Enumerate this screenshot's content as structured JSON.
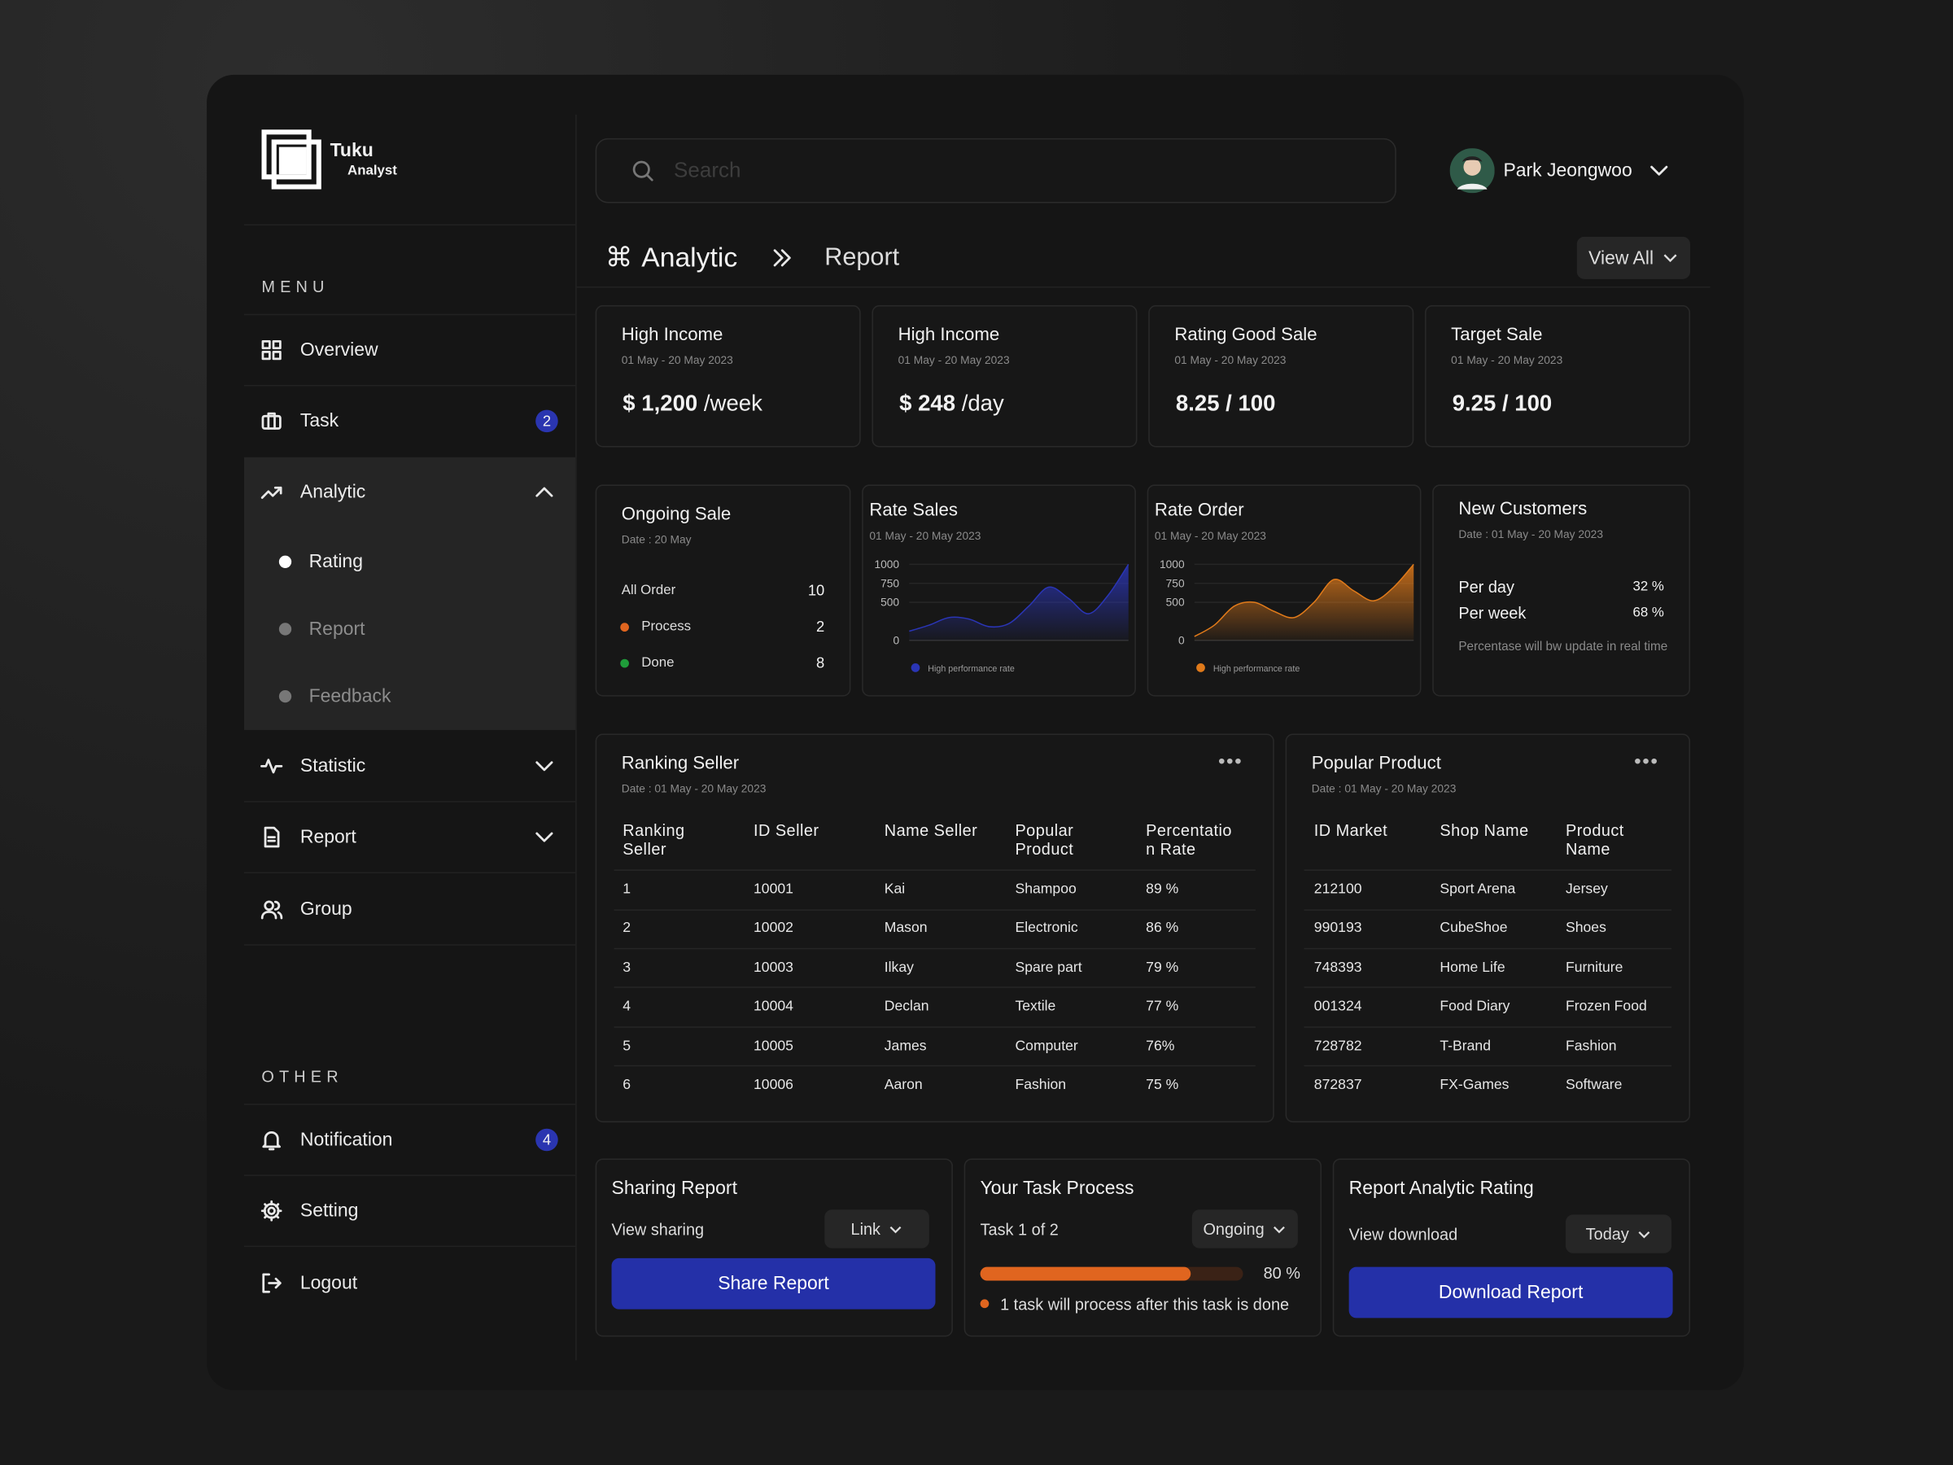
{
  "brand": {
    "name": "Tuku",
    "tagline": "Analyst"
  },
  "sidebar": {
    "menu_label": "MENU",
    "menu": [
      {
        "label": "Overview"
      },
      {
        "label": "Task",
        "badge": 2
      },
      {
        "label": "Analytic",
        "submenu": [
          "Rating",
          "Report",
          "Feedback"
        ]
      },
      {
        "label": "Statistic"
      },
      {
        "label": "Report"
      },
      {
        "label": "Group"
      }
    ],
    "other_label": "OTHER",
    "other": [
      {
        "label": "Notification",
        "badge": 4
      },
      {
        "label": "Setting"
      },
      {
        "label": "Logout"
      }
    ]
  },
  "search": {
    "placeholder": "Search"
  },
  "user": {
    "name": "Park Jeongwoo"
  },
  "breadcrumb": {
    "section": "Analytic",
    "page": "Report",
    "button": "View All"
  },
  "stat_cards": [
    {
      "title": "High Income",
      "date": "01 May - 20 May 2023",
      "value": "$ 1,200",
      "unit": "/week"
    },
    {
      "title": "High Income",
      "date": "01 May - 20 May 2023",
      "value": "$ 248",
      "unit": "/day"
    },
    {
      "title": "Rating Good Sale",
      "date": "01 May - 20 May 2023",
      "value": "8.25 / 100"
    },
    {
      "title": "Target Sale",
      "date": "01 May - 20 May 2023",
      "value": "9.25 / 100"
    }
  ],
  "ongoing_sale": {
    "title": "Ongoing Sale",
    "date": "Date : 20 May",
    "rows": [
      {
        "label": "All Order",
        "value": 10
      },
      {
        "label": "Process",
        "value": 2,
        "color": "#e0651f"
      },
      {
        "label": "Done",
        "value": 8,
        "color": "#1f9d3a"
      }
    ]
  },
  "chart_data": [
    {
      "type": "area",
      "title": "Rate Sales",
      "subtitle": "01 May - 20 May 2023",
      "ylim": [
        0,
        1000
      ],
      "yticks": [
        0,
        500,
        750,
        1000
      ],
      "grid": true,
      "series": [
        {
          "name": "High performance rate",
          "color": "#2a35b5",
          "values": [
            120,
            200,
            300,
            280,
            180,
            220,
            450,
            700,
            550,
            350,
            600,
            1000
          ]
        }
      ]
    },
    {
      "type": "area",
      "title": "Rate Order",
      "subtitle": "01 May - 20 May 2023",
      "ylim": [
        0,
        1000
      ],
      "yticks": [
        0,
        500,
        750,
        1000
      ],
      "grid": true,
      "series": [
        {
          "name": "High performance rate",
          "color": "#e07a1a",
          "values": [
            50,
            200,
            450,
            500,
            380,
            300,
            500,
            800,
            650,
            520,
            700,
            1000
          ]
        }
      ]
    }
  ],
  "new_customers": {
    "title": "New Customers",
    "date": "Date : 01 May - 20 May 2023",
    "rows": [
      {
        "label": "Per day",
        "value": "32 %"
      },
      {
        "label": "Per week",
        "value": "68 %"
      }
    ],
    "note": "Percentase will bw update in real time"
  },
  "ranking_seller": {
    "title": "Ranking Seller",
    "date": "Date : 01 May - 20 May 2023",
    "columns": [
      "Ranking Seller",
      "ID Seller",
      "Name Seller",
      "Popular Product",
      "Percentation Rate"
    ],
    "rows": [
      [
        "1",
        "10001",
        "Kai",
        "Shampoo",
        "89 %"
      ],
      [
        "2",
        "10002",
        "Mason",
        "Electronic",
        "86 %"
      ],
      [
        "3",
        "10003",
        "Ilkay",
        "Spare part",
        "79 %"
      ],
      [
        "4",
        "10004",
        "Declan",
        "Textile",
        "77 %"
      ],
      [
        "5",
        "10005",
        "James",
        "Computer",
        "76%"
      ],
      [
        "6",
        "10006",
        "Aaron",
        "Fashion",
        "75 %"
      ]
    ]
  },
  "popular_product": {
    "title": "Popular Product",
    "date": "Date : 01 May - 20 May 2023",
    "columns": [
      "ID Market",
      "Shop Name",
      "Product Name"
    ],
    "rows": [
      [
        "212100",
        "Sport Arena",
        "Jersey"
      ],
      [
        "990193",
        "CubeShoe",
        "Shoes"
      ],
      [
        "748393",
        "Home Life",
        "Furniture"
      ],
      [
        "001324",
        "Food Diary",
        "Frozen Food"
      ],
      [
        "728782",
        "T-Brand",
        "Fashion"
      ],
      [
        "872837",
        "FX-Games",
        "Software"
      ]
    ]
  },
  "sharing_report": {
    "title": "Sharing Report",
    "label": "View sharing",
    "select": "Link",
    "button": "Share Report"
  },
  "task_process": {
    "title": "Your Task Process",
    "label": "Task 1 of 2",
    "select": "Ongoing",
    "progress": {
      "value": 80,
      "label": "80 %"
    },
    "note": "1 task will process after this task is done"
  },
  "report_rating": {
    "title": "Report Analytic Rating",
    "label": "View download",
    "select": "Today",
    "button": "Download Report"
  }
}
